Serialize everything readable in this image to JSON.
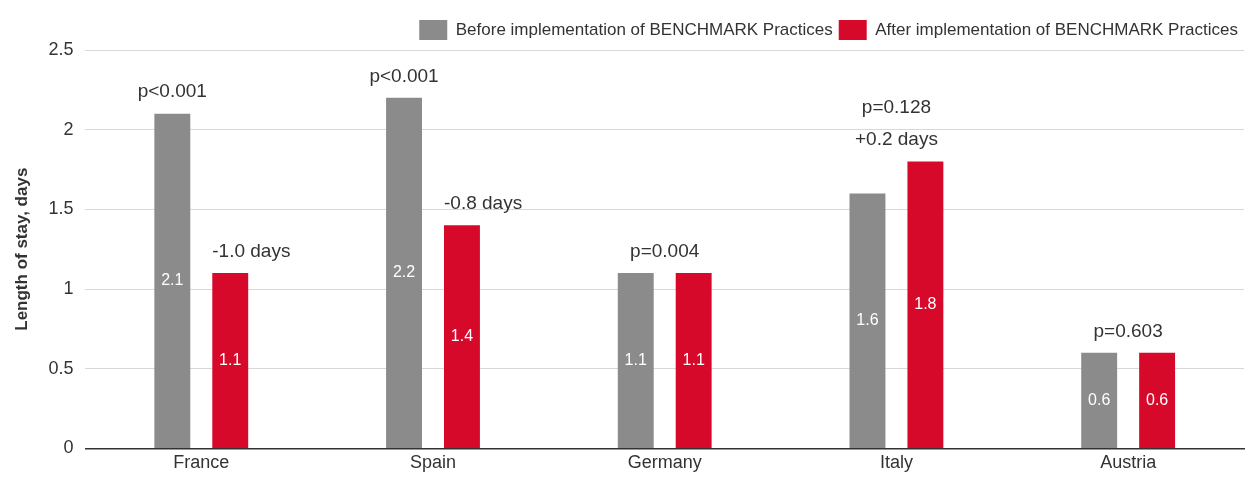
{
  "chart_data": {
    "type": "bar",
    "ylabel": "Length of stay, days",
    "categories": [
      "France",
      "Spain",
      "Germany",
      "Italy",
      "Austria"
    ],
    "series": [
      {
        "name": "Before implementation of BENCHMARK Practices",
        "color": "#8a8b8a",
        "values": [
          2.1,
          2.2,
          1.1,
          1.6,
          0.6
        ]
      },
      {
        "name": "After implementation of BENCHMARK Practices",
        "color": "#d7092b",
        "values": [
          1.1,
          1.4,
          1.1,
          1.8,
          0.6
        ]
      }
    ],
    "ylim": [
      0,
      2.5
    ],
    "yticks": [
      0,
      0.5,
      1,
      1.5,
      2,
      2.5
    ],
    "grid": "y",
    "legend": "top right",
    "data_labels": true,
    "annotations": [
      "p<0.001",
      "-1.0 days",
      "p<0.001",
      "-0.8 days",
      "p=0.004",
      "p=0.128",
      "+0.2 days",
      "p=0.603"
    ]
  }
}
